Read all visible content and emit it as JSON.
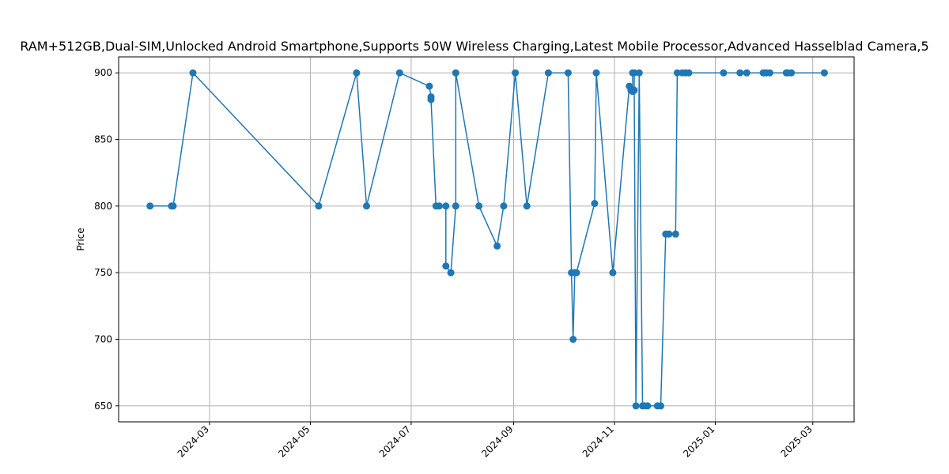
{
  "chart_data": {
    "type": "line",
    "title": "RAM+512GB,Dual-SIM,Unlocked Android Smartphone,Supports 50W Wireless Charging,Latest Mobile Processor,Advanced Hasselblad Camera,5",
    "xlabel": "",
    "ylabel": "Price",
    "xlim": [
      "2024-01-06",
      "2025-03-26"
    ],
    "ylim": [
      638,
      912
    ],
    "x_ticks": [
      "2024-03-01",
      "2024-05-01",
      "2024-07-01",
      "2024-09-01",
      "2024-11-01",
      "2025-01-01",
      "2025-03-01"
    ],
    "x_tick_labels": [
      "2024-03",
      "2024-05",
      "2024-07",
      "2024-09",
      "2024-11",
      "2025-01",
      "2025-03"
    ],
    "y_ticks": [
      650,
      700,
      750,
      800,
      850,
      900
    ],
    "y_tick_labels": [
      "650",
      "700",
      "750",
      "800",
      "850",
      "900"
    ],
    "grid": true,
    "color": "#1f77b4",
    "x": [
      "2024-01-25",
      "2024-02-07",
      "2024-02-08",
      "2024-02-20",
      "2024-05-06",
      "2024-05-29",
      "2024-06-04",
      "2024-06-24",
      "2024-07-12",
      "2024-07-13",
      "2024-07-13",
      "2024-07-16",
      "2024-07-18",
      "2024-07-22",
      "2024-07-22",
      "2024-07-25",
      "2024-07-28",
      "2024-07-28",
      "2024-08-11",
      "2024-08-22",
      "2024-08-26",
      "2024-09-02",
      "2024-09-09",
      "2024-09-22",
      "2024-10-04",
      "2024-10-06",
      "2024-10-07",
      "2024-10-08",
      "2024-10-08",
      "2024-10-08",
      "2024-10-09",
      "2024-10-20",
      "2024-10-21",
      "2024-10-31",
      "2024-11-10",
      "2024-11-11",
      "2024-11-11",
      "2024-11-12",
      "2024-11-12",
      "2024-11-13",
      "2024-11-13",
      "2024-11-14",
      "2024-11-16",
      "2024-11-18",
      "2024-11-19",
      "2024-11-21",
      "2024-11-27",
      "2024-11-29",
      "2024-12-02",
      "2024-12-04",
      "2024-12-08",
      "2024-12-09",
      "2024-12-12",
      "2024-12-14",
      "2024-12-16",
      "2025-01-06",
      "2025-01-16",
      "2025-01-20",
      "2025-01-30",
      "2025-01-31",
      "2025-02-01",
      "2025-02-03",
      "2025-02-13",
      "2025-02-14",
      "2025-02-16",
      "2025-03-08"
    ],
    "series": [
      {
        "values": [
          800,
          800,
          800,
          900,
          800,
          900,
          800,
          900,
          890,
          882,
          880,
          800,
          800,
          800,
          755,
          750,
          800,
          900,
          800,
          770,
          800,
          900,
          800,
          900,
          900,
          750,
          700,
          750,
          750,
          750,
          750,
          802,
          900,
          750,
          890,
          887,
          888,
          886,
          900,
          900,
          887,
          650,
          900,
          650,
          650,
          650,
          650,
          650,
          779,
          779,
          779,
          900,
          900,
          900,
          900,
          900,
          900,
          900,
          900,
          900,
          900,
          900,
          900,
          900,
          900,
          900
        ]
      }
    ]
  }
}
